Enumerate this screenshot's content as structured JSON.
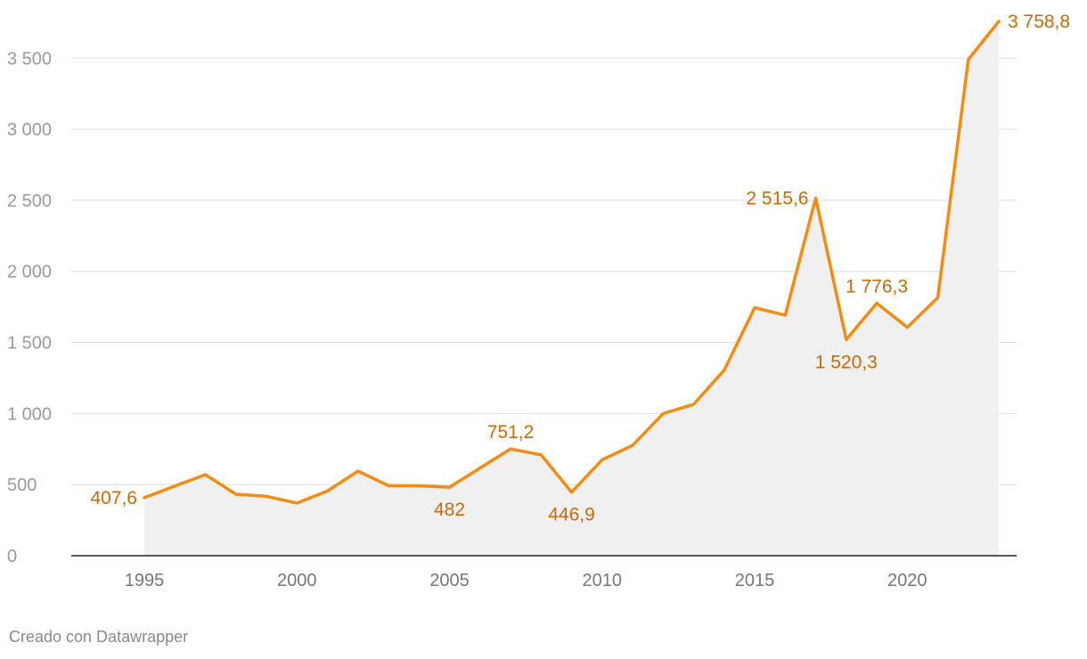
{
  "chart_data": {
    "type": "area",
    "x": [
      1995,
      1996,
      1997,
      1998,
      1999,
      2000,
      2001,
      2002,
      2003,
      2004,
      2005,
      2006,
      2007,
      2008,
      2009,
      2010,
      2011,
      2012,
      2013,
      2014,
      2015,
      2016,
      2017,
      2018,
      2019,
      2020,
      2021,
      2022,
      2023
    ],
    "series": [
      {
        "values": [
          407.6,
          490,
          570,
          432,
          418,
          370,
          455,
          595,
          493,
          492,
          482,
          617,
          751.2,
          710,
          446.9,
          675,
          776,
          1000,
          1065,
          1305,
          1745,
          1692,
          2515.6,
          1520.3,
          1776.3,
          1607,
          1815,
          3490,
          3758.8
        ]
      }
    ],
    "annotations": [
      {
        "x": 1995,
        "value": 407.6,
        "text": "407,6",
        "position": "left"
      },
      {
        "x": 2005,
        "value": 482,
        "text": "482",
        "position": "below"
      },
      {
        "x": 2007,
        "value": 751.2,
        "text": "751,2",
        "position": "above"
      },
      {
        "x": 2009,
        "value": 446.9,
        "text": "446,9",
        "position": "below"
      },
      {
        "x": 2017,
        "value": 2515.6,
        "text": "2 515,6",
        "position": "left"
      },
      {
        "x": 2018,
        "value": 1520.3,
        "text": "1 520,3",
        "position": "below"
      },
      {
        "x": 2019,
        "value": 1776.3,
        "text": "1 776,3",
        "position": "above"
      },
      {
        "x": 2023,
        "value": 3758.8,
        "text": "3 758,8",
        "position": "right"
      }
    ],
    "yticks": [
      0,
      500,
      1000,
      1500,
      2000,
      2500,
      3000,
      3500
    ],
    "ytick_labels": [
      "0",
      "500",
      "1 000",
      "1 500",
      "2 000",
      "2 500",
      "3 000",
      "3 500"
    ],
    "xticks": [
      1995,
      2000,
      2005,
      2010,
      2015,
      2020
    ],
    "xtick_labels": [
      "1995",
      "2000",
      "2005",
      "2010",
      "2015",
      "2020"
    ],
    "xlim": [
      1995,
      2023
    ],
    "ylim": [
      0,
      3758.8
    ],
    "grid": true,
    "title": "",
    "xlabel": "",
    "ylabel": ""
  },
  "colors": {
    "line": "#f28c13",
    "label": "#c76a0a",
    "area": "#f0f0f0",
    "grid": "#dddddd",
    "axis": "#222222"
  },
  "footer": {
    "credit": "Creado con Datawrapper"
  }
}
